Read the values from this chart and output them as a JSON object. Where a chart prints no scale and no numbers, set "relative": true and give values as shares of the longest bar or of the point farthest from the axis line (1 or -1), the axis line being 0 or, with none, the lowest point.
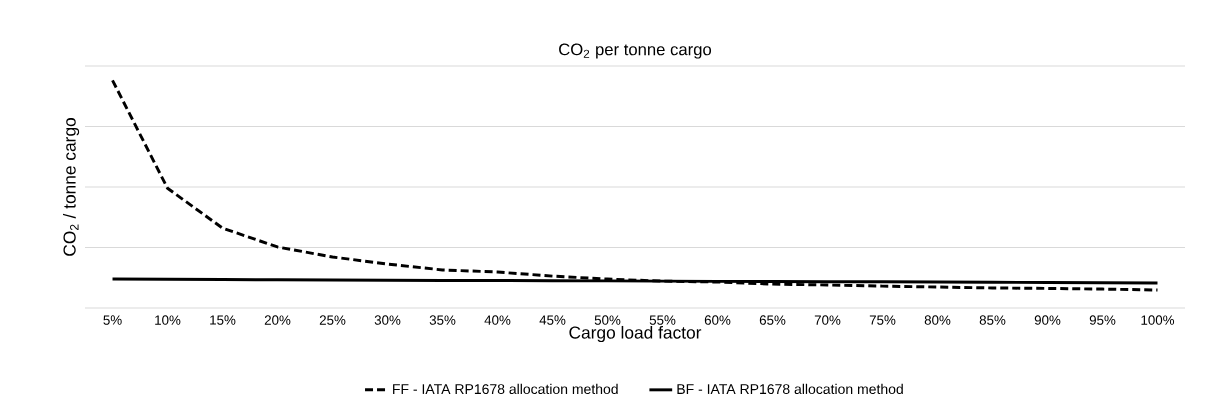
{
  "chart_data": {
    "type": "line",
    "title": "CO$_{2}$ per tonne cargo",
    "xlabel": "Cargo load factor",
    "ylabel": "CO$_{2}$ / tonne cargo",
    "categories": [
      "5%",
      "10%",
      "15%",
      "20%",
      "25%",
      "30%",
      "35%",
      "40%",
      "45%",
      "50%",
      "55%",
      "60%",
      "65%",
      "70%",
      "75%",
      "80%",
      "85%",
      "90%",
      "95%",
      "100%"
    ],
    "relative": true,
    "grid": "y",
    "legend": "bottom",
    "series": [
      {
        "name": "FF - IATA RP1678 allocation method",
        "color": "#000000",
        "line_style": "dashed",
        "values": [
          1,
          0.526,
          0.351,
          0.268,
          0.224,
          0.193,
          0.167,
          0.158,
          0.14,
          0.127,
          0.118,
          0.114,
          0.105,
          0.101,
          0.096,
          0.092,
          0.088,
          0.086,
          0.083,
          0.079
        ]
      },
      {
        "name": "BF - IATA RP1678 allocation method",
        "color": "#000000",
        "line_style": "solid",
        "values": [
          0.127,
          0.126,
          0.125,
          0.124,
          0.123,
          0.122,
          0.121,
          0.121,
          0.12,
          0.119,
          0.118,
          0.117,
          0.116,
          0.115,
          0.115,
          0.114,
          0.113,
          0.112,
          0.111,
          0.11
        ]
      }
    ]
  }
}
